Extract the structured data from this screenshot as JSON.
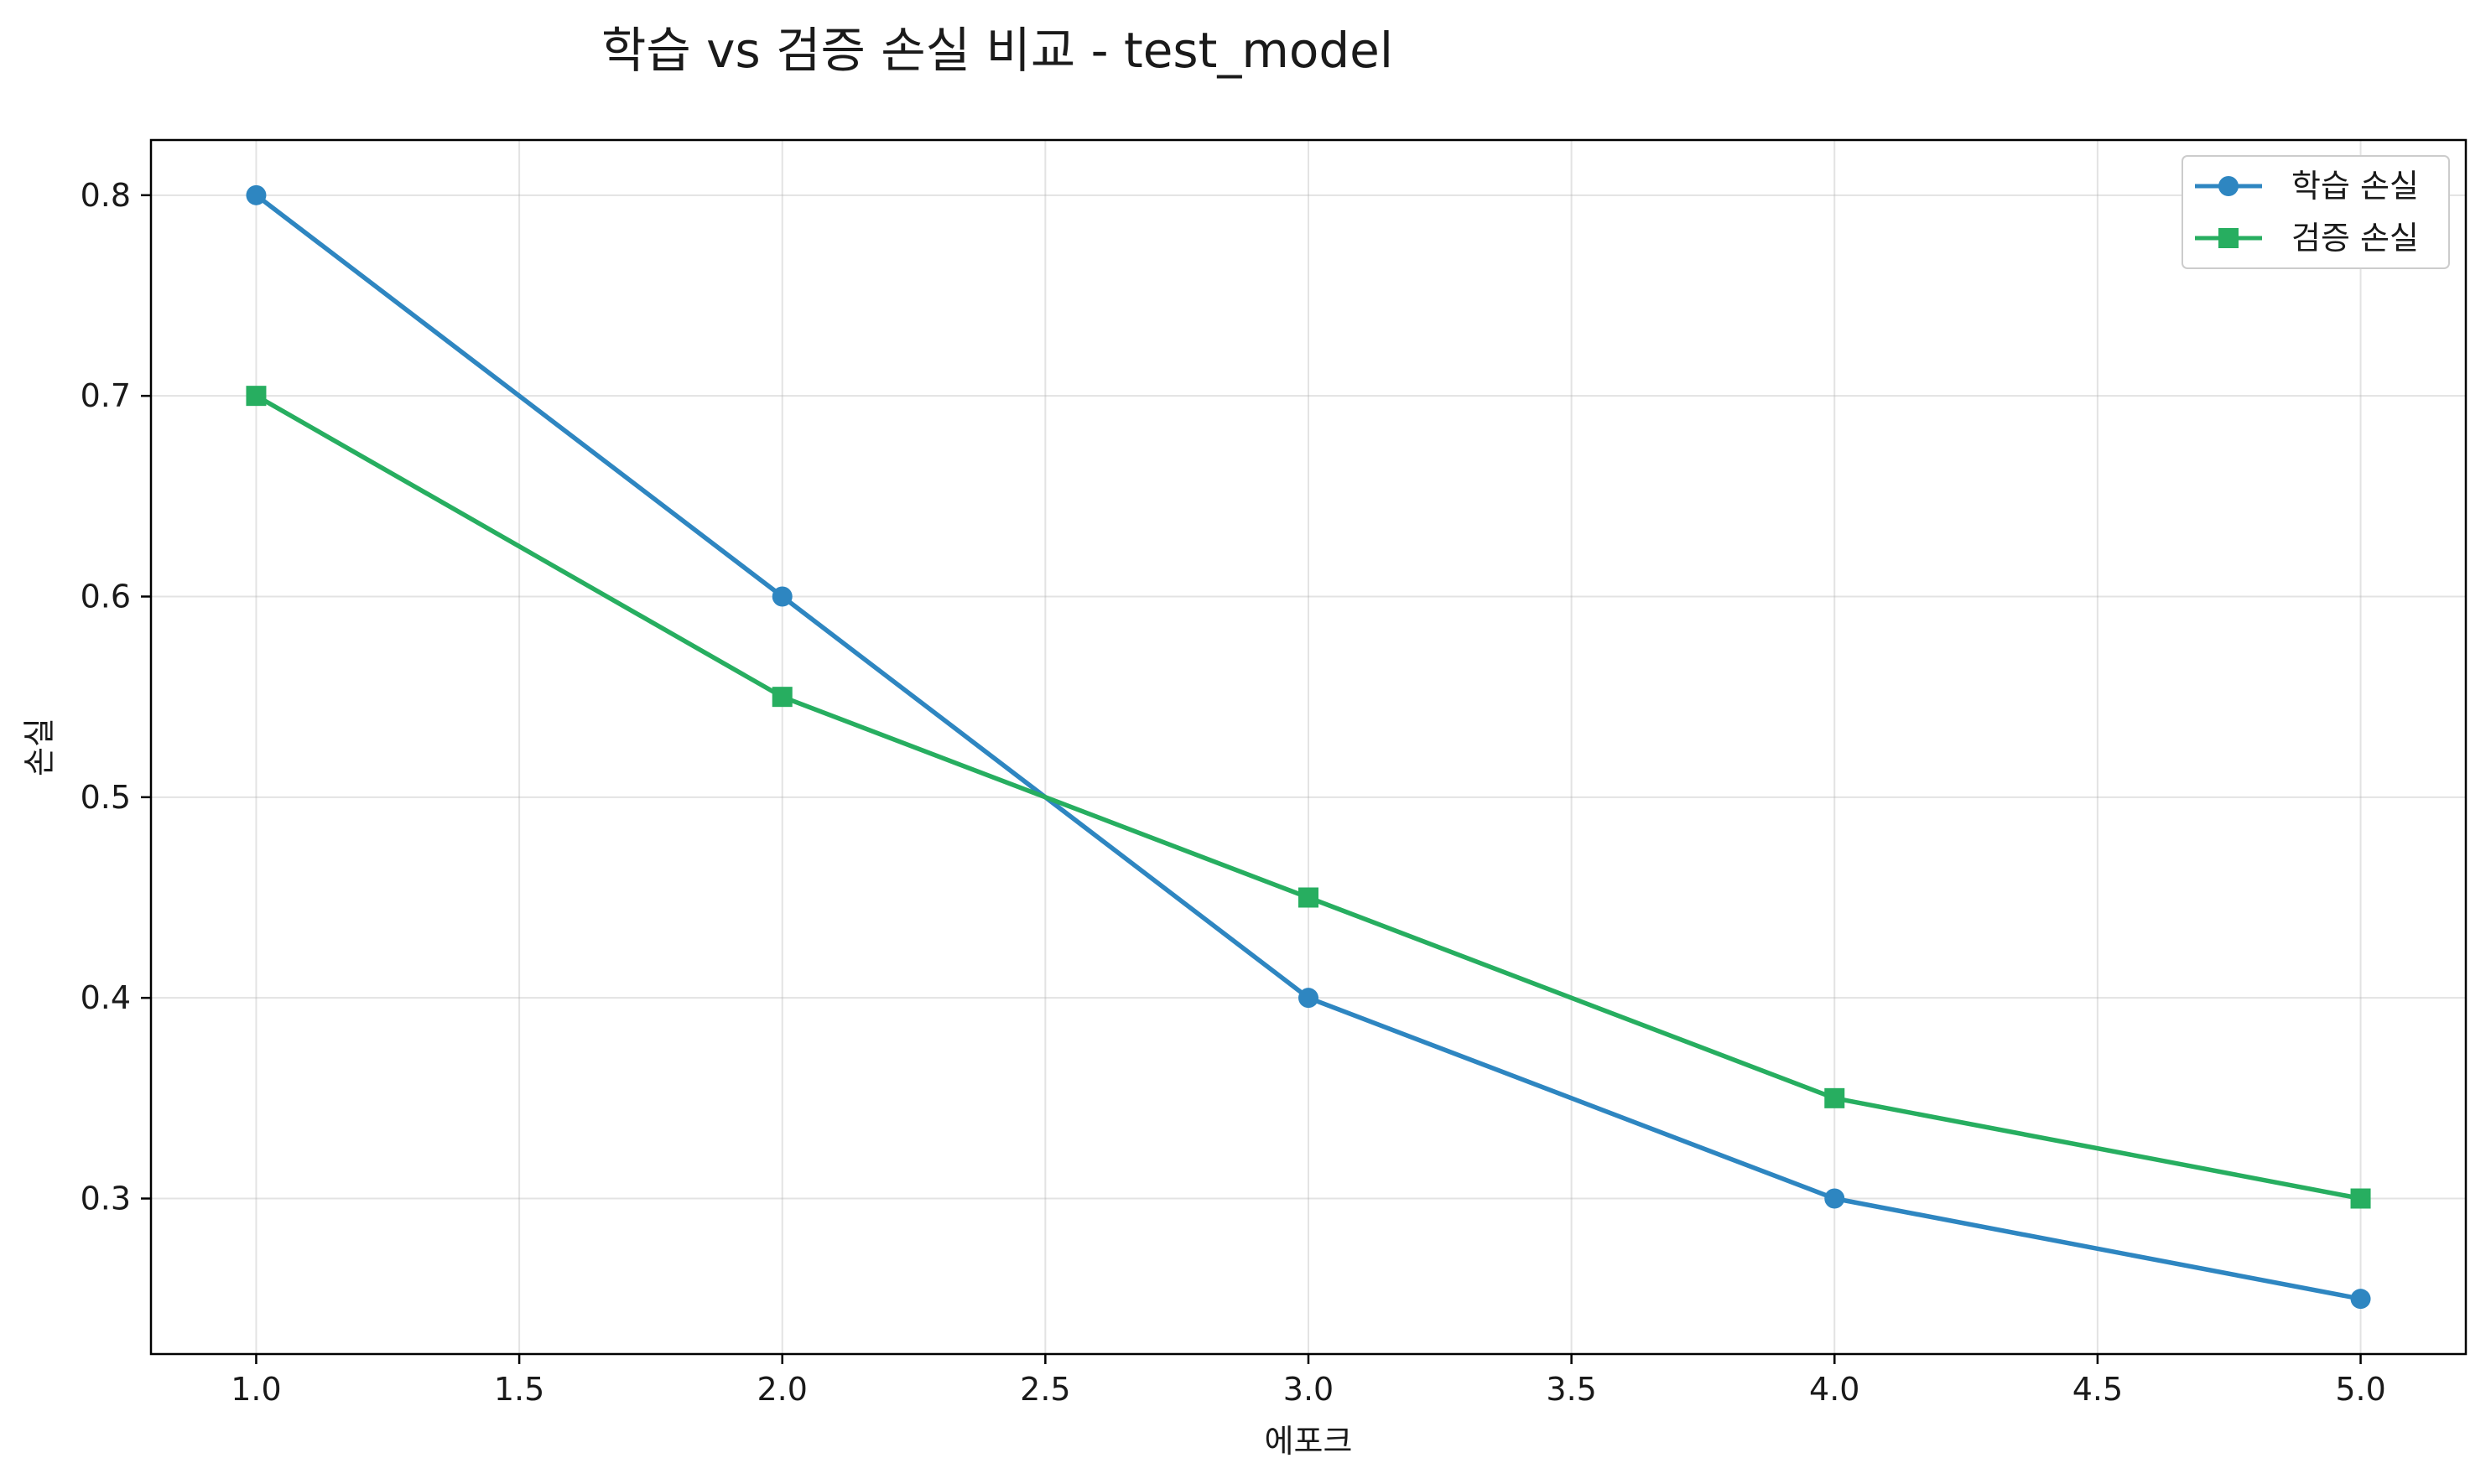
{
  "chart_data": {
    "type": "line",
    "title": "학습 vs 검증 손실 비교 - test_model",
    "xlabel": "에포크",
    "ylabel": "손실",
    "x": [
      1.0,
      2.0,
      3.0,
      4.0,
      5.0
    ],
    "series": [
      {
        "name": "학습 손실",
        "values": [
          0.8,
          0.6,
          0.4,
          0.3,
          0.25
        ],
        "color": "#2e86c1",
        "marker": "circle"
      },
      {
        "name": "검증 손실",
        "values": [
          0.7,
          0.55,
          0.45,
          0.35,
          0.3
        ],
        "color": "#27ae60",
        "marker": "square"
      }
    ],
    "xlim": [
      0.8,
      5.2
    ],
    "ylim": [
      0.2225,
      0.8275
    ],
    "xticks": [
      1.0,
      1.5,
      2.0,
      2.5,
      3.0,
      3.5,
      4.0,
      4.5,
      5.0
    ],
    "xtick_labels": [
      "1.0",
      "1.5",
      "2.0",
      "2.5",
      "3.0",
      "3.5",
      "4.0",
      "4.5",
      "5.0"
    ],
    "yticks": [
      0.3,
      0.4,
      0.5,
      0.6,
      0.7,
      0.8
    ],
    "ytick_labels": [
      "0.3",
      "0.4",
      "0.5",
      "0.6",
      "0.7",
      "0.8"
    ],
    "grid": true,
    "legend_position": "top-right"
  }
}
